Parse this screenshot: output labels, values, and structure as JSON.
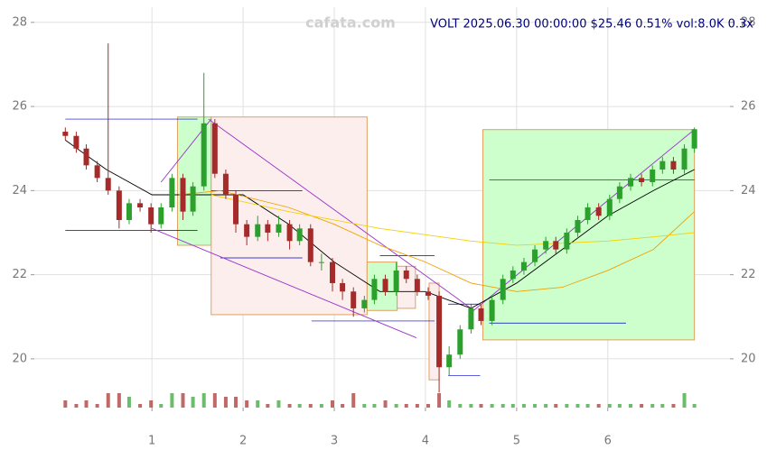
{
  "chart_data": {
    "type": "candlestick",
    "title": "VOLT 2025.06.30 00:00:00 $25.46 0.51% vol:8.0K 0.3x",
    "watermark": "cafata.com",
    "xlim": [
      -0.29,
      7.34
    ],
    "ylim": [
      18.84,
      28.36
    ],
    "xticks": [
      1,
      2,
      3,
      4,
      5,
      6
    ],
    "yticks": [
      20,
      22,
      24,
      26,
      28
    ],
    "grid": true,
    "up_color": "#2ca02c",
    "down_color": "#a52a2a",
    "x": [
      0.05,
      0.17,
      0.28,
      0.4,
      0.52,
      0.64,
      0.75,
      0.87,
      0.99,
      1.1,
      1.22,
      1.34,
      1.45,
      1.57,
      1.69,
      1.81,
      1.92,
      2.04,
      2.16,
      2.27,
      2.39,
      2.51,
      2.62,
      2.74,
      2.86,
      2.98,
      3.09,
      3.21,
      3.33,
      3.44,
      3.56,
      3.68,
      3.79,
      3.91,
      4.03,
      4.15,
      4.26,
      4.38,
      4.5,
      4.61,
      4.73,
      4.85,
      4.96,
      5.08,
      5.2,
      5.32,
      5.43,
      5.55,
      5.67,
      5.78,
      5.9,
      6.02,
      6.13,
      6.25,
      6.37,
      6.49,
      6.6,
      6.72,
      6.84,
      6.95
    ],
    "open": [
      25.4,
      25.3,
      25.0,
      24.6,
      24.3,
      24.0,
      23.3,
      23.7,
      23.6,
      23.2,
      23.6,
      24.3,
      23.5,
      24.1,
      25.6,
      24.4,
      23.9,
      23.2,
      22.9,
      23.2,
      23.0,
      23.2,
      22.8,
      23.1,
      22.3,
      22.3,
      21.8,
      21.6,
      21.2,
      21.4,
      21.9,
      21.6,
      22.1,
      21.9,
      21.6,
      21.5,
      19.8,
      20.1,
      20.7,
      21.2,
      20.9,
      21.4,
      21.9,
      22.1,
      22.3,
      22.6,
      22.8,
      22.6,
      23.0,
      23.3,
      23.6,
      23.4,
      23.8,
      24.1,
      24.3,
      24.2,
      24.5,
      24.7,
      24.5,
      25.0
    ],
    "high": [
      25.5,
      25.4,
      25.1,
      24.7,
      27.5,
      24.1,
      23.8,
      23.8,
      23.7,
      23.7,
      24.4,
      24.4,
      24.2,
      26.8,
      25.7,
      24.5,
      24.0,
      23.3,
      23.4,
      23.3,
      23.4,
      23.3,
      23.2,
      23.2,
      22.5,
      22.4,
      21.9,
      21.7,
      21.5,
      22.0,
      22.0,
      22.3,
      22.2,
      22.0,
      21.7,
      21.6,
      20.3,
      20.8,
      21.3,
      21.3,
      21.5,
      22.0,
      22.2,
      22.4,
      22.7,
      22.9,
      22.9,
      23.1,
      23.4,
      23.7,
      23.7,
      23.9,
      24.2,
      24.4,
      24.4,
      24.6,
      24.8,
      24.8,
      25.1,
      25.5
    ],
    "low": [
      25.2,
      24.9,
      24.5,
      24.2,
      23.9,
      23.1,
      23.2,
      23.5,
      23.0,
      23.1,
      23.5,
      23.3,
      23.4,
      24.0,
      24.3,
      23.8,
      23.0,
      22.7,
      22.8,
      22.8,
      22.9,
      22.6,
      22.7,
      22.2,
      22.1,
      21.6,
      21.4,
      21.0,
      21.1,
      21.3,
      21.5,
      21.5,
      21.8,
      21.5,
      21.4,
      19.2,
      19.6,
      20.0,
      20.6,
      20.8,
      20.8,
      21.3,
      21.8,
      22.0,
      22.2,
      22.5,
      22.5,
      22.5,
      22.9,
      23.2,
      23.3,
      23.3,
      23.7,
      24.0,
      24.1,
      24.1,
      24.4,
      24.4,
      24.4,
      24.9
    ],
    "close": [
      25.3,
      25.0,
      24.6,
      24.3,
      24.0,
      23.3,
      23.7,
      23.6,
      23.2,
      23.6,
      24.3,
      23.5,
      24.1,
      25.6,
      24.4,
      23.9,
      23.2,
      22.9,
      23.2,
      23.0,
      23.2,
      22.8,
      23.1,
      22.3,
      22.3,
      21.8,
      21.6,
      21.2,
      21.4,
      21.9,
      21.6,
      22.1,
      21.9,
      21.6,
      21.5,
      19.8,
      20.1,
      20.7,
      21.2,
      20.9,
      21.4,
      21.9,
      22.1,
      22.3,
      22.6,
      22.8,
      22.6,
      23.0,
      23.3,
      23.6,
      23.4,
      23.8,
      24.1,
      24.3,
      24.2,
      24.5,
      24.7,
      24.5,
      25.0,
      25.46
    ],
    "volume": [
      2,
      1,
      2,
      1,
      4,
      4,
      3,
      1,
      2,
      1,
      4,
      4,
      3,
      4,
      4,
      3,
      3,
      2,
      2,
      1,
      2,
      1,
      1,
      1,
      1,
      2,
      1,
      4,
      1,
      1,
      2,
      1,
      1,
      1,
      1,
      4,
      2,
      1,
      1,
      1,
      1,
      1,
      1,
      1,
      1,
      1,
      1,
      1,
      1,
      1,
      1,
      1,
      1,
      1,
      1,
      1,
      1,
      1,
      4,
      1
    ],
    "boxes": [
      {
        "x": [
          1.28,
          1.65
        ],
        "y": [
          22.7,
          25.75
        ],
        "color": "#ccffcc"
      },
      {
        "x": [
          1.65,
          3.36
        ],
        "y": [
          21.05,
          25.75
        ],
        "color": "#fdeeee"
      },
      {
        "x": [
          3.36,
          3.69
        ],
        "y": [
          21.15,
          22.3
        ],
        "color": "#ccffcc"
      },
      {
        "x": [
          3.69,
          3.89
        ],
        "y": [
          21.2,
          22.2
        ],
        "color": "#fdeeee"
      },
      {
        "x": [
          4.04,
          4.15
        ],
        "y": [
          19.5,
          21.8
        ],
        "color": "#fdeeee"
      },
      {
        "x": [
          4.63,
          6.95
        ],
        "y": [
          20.45,
          25.45
        ],
        "color": "#ccffcc"
      }
    ],
    "levels": [
      {
        "x": [
          0.05,
          1.5
        ],
        "y": 25.7
      },
      {
        "x": [
          0.05,
          1.5
        ],
        "y": 23.05
      },
      {
        "x": [
          1.65,
          2.65
        ],
        "y": 24.0
      },
      {
        "x": [
          1.75,
          2.65
        ],
        "y": 22.4
      },
      {
        "x": [
          2.75,
          4.1
        ],
        "y": 20.9
      },
      {
        "x": [
          3.5,
          4.1
        ],
        "y": 22.45
      },
      {
        "x": [
          4.25,
          4.6
        ],
        "y": 19.6
      },
      {
        "x": [
          4.25,
          4.6
        ],
        "y": 21.3
      },
      {
        "x": [
          4.7,
          6.2
        ],
        "y": 20.85
      },
      {
        "x": [
          4.7,
          6.95
        ],
        "y": 24.25
      }
    ],
    "trends": [
      {
        "x": [
          1.62,
          4.5
        ],
        "y": [
          25.7,
          21.2
        ]
      },
      {
        "x": [
          1.0,
          3.9
        ],
        "y": [
          23.1,
          20.5
        ]
      },
      {
        "x": [
          1.1,
          1.65
        ],
        "y": [
          24.2,
          25.7
        ]
      },
      {
        "x": [
          4.5,
          6.95
        ],
        "y": [
          21.1,
          25.45
        ]
      }
    ],
    "lines": [
      {
        "color": "#000000",
        "x": [
          0.05,
          0.5,
          1.0,
          1.5,
          2.0,
          2.5,
          3.0,
          3.5,
          4.0,
          4.5,
          5.0,
          5.5,
          6.0,
          6.5,
          6.95
        ],
        "y": [
          25.2,
          24.5,
          23.9,
          23.9,
          23.9,
          23.2,
          22.3,
          21.6,
          21.6,
          21.2,
          21.8,
          22.6,
          23.4,
          24.0,
          24.5
        ]
      },
      {
        "color": "#f0a000",
        "x": [
          1.3,
          1.75,
          2.5,
          3.0,
          3.5,
          4.0,
          4.5,
          5.0,
          5.5,
          6.0,
          6.5,
          6.95
        ],
        "y": [
          23.9,
          24.0,
          23.6,
          23.2,
          22.7,
          22.3,
          21.8,
          21.6,
          21.7,
          22.1,
          22.6,
          23.5
        ]
      },
      {
        "color": "#f5d000",
        "x": [
          1.65,
          2.5,
          3.5,
          4.5,
          5.0,
          5.5,
          6.0,
          6.5,
          6.95
        ],
        "y": [
          23.9,
          23.5,
          23.1,
          22.8,
          22.7,
          22.75,
          22.8,
          22.9,
          23.0
        ]
      }
    ]
  }
}
